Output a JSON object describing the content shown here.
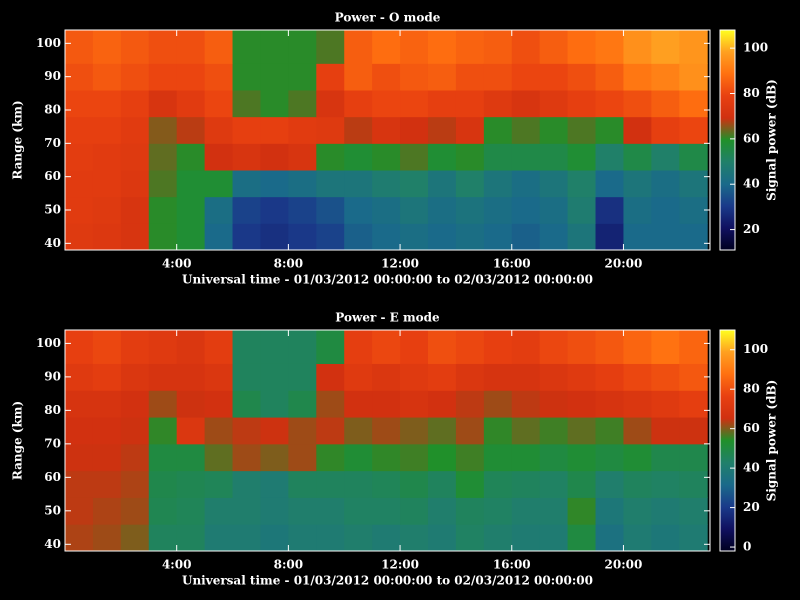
{
  "chart_data": [
    {
      "type": "heatmap",
      "title": "Power - O mode",
      "xlabel": "Universal time - 01/03/2012 00:00:00 to 02/03/2012 00:00:00",
      "ylabel": "Range (km)",
      "colorbar_label": "Signal power (dB)",
      "x_bins": [
        0,
        1,
        2,
        3,
        4,
        5,
        6,
        7,
        8,
        9,
        10,
        11,
        12,
        13,
        14,
        15,
        16,
        17,
        18,
        19,
        20,
        21,
        22,
        23
      ],
      "y_bins": [
        38,
        46,
        54,
        62,
        70,
        78,
        86,
        94,
        104
      ],
      "values": [
        [
          75,
          74,
          72,
          60,
          58,
          40,
          30,
          28,
          30,
          32,
          38,
          40,
          42,
          40,
          42,
          40,
          38,
          40,
          45,
          25,
          40,
          40,
          40
        ],
        [
          76,
          75,
          72,
          60,
          58,
          42,
          32,
          30,
          32,
          35,
          40,
          42,
          45,
          42,
          44,
          42,
          40,
          42,
          48,
          28,
          42,
          40,
          42
        ],
        [
          76,
          76,
          74,
          62,
          58,
          58,
          42,
          40,
          42,
          45,
          45,
          48,
          50,
          45,
          50,
          45,
          42,
          45,
          50,
          40,
          45,
          42,
          45
        ],
        [
          77,
          76,
          75,
          63,
          60,
          70,
          72,
          70,
          72,
          60,
          58,
          60,
          62,
          58,
          60,
          55,
          55,
          55,
          58,
          50,
          55,
          50,
          55
        ],
        [
          78,
          78,
          76,
          65,
          68,
          75,
          78,
          78,
          76,
          75,
          68,
          72,
          70,
          68,
          72,
          60,
          62,
          60,
          62,
          60,
          70,
          78,
          80
        ],
        [
          80,
          80,
          78,
          72,
          76,
          80,
          62,
          60,
          62,
          72,
          78,
          80,
          80,
          78,
          78,
          75,
          72,
          75,
          78,
          80,
          82,
          85,
          88
        ],
        [
          82,
          84,
          82,
          80,
          80,
          82,
          60,
          60,
          60,
          78,
          85,
          82,
          84,
          85,
          82,
          82,
          80,
          80,
          82,
          85,
          90,
          92,
          95
        ],
        [
          84,
          86,
          84,
          82,
          82,
          85,
          60,
          60,
          60,
          62,
          85,
          88,
          86,
          88,
          86,
          85,
          82,
          85,
          88,
          90,
          95,
          98,
          96
        ]
      ],
      "xlim": [
        0,
        23.1
      ],
      "xticks": [
        {
          "value": 4,
          "label": "4:00"
        },
        {
          "value": 8,
          "label": "8:00"
        },
        {
          "value": 12,
          "label": "12:00"
        },
        {
          "value": 16,
          "label": "16:00"
        },
        {
          "value": 20,
          "label": "20:00"
        }
      ],
      "ylim": [
        38,
        104
      ],
      "yticks": [
        40,
        50,
        60,
        70,
        80,
        90,
        100
      ],
      "zlim": [
        11,
        108
      ],
      "zticks": [
        20,
        40,
        60,
        80,
        100
      ],
      "colormap": [
        "#000020",
        "#101060",
        "#1a3a8a",
        "#1a6a8a",
        "#20806a",
        "#20902a",
        "#d03010",
        "#e84010",
        "#ff7010",
        "#ffa020",
        "#ffff20"
      ]
    },
    {
      "type": "heatmap",
      "title": "Power - E mode",
      "xlabel": "Universal time - 01/03/2012 00:00:00 to 02/03/2012 00:00:00",
      "ylabel": "Range (km)",
      "colorbar_label": "Signal power (dB)",
      "x_bins": [
        0,
        1,
        2,
        3,
        4,
        5,
        6,
        7,
        8,
        9,
        10,
        11,
        12,
        13,
        14,
        15,
        16,
        17,
        18,
        19,
        20,
        21,
        22,
        23
      ],
      "y_bins": [
        38,
        46,
        54,
        62,
        70,
        78,
        86,
        94,
        104
      ],
      "values": [
        [
          63,
          62,
          60,
          45,
          45,
          40,
          40,
          38,
          40,
          40,
          42,
          40,
          42,
          40,
          44,
          42,
          40,
          40,
          50,
          35,
          40,
          38,
          40
        ],
        [
          64,
          63,
          62,
          47,
          46,
          42,
          42,
          40,
          42,
          42,
          44,
          44,
          45,
          42,
          45,
          44,
          42,
          42,
          55,
          38,
          42,
          40,
          42
        ],
        [
          64,
          64,
          63,
          48,
          47,
          46,
          42,
          40,
          45,
          45,
          45,
          46,
          48,
          45,
          52,
          46,
          45,
          44,
          48,
          42,
          45,
          44,
          45
        ],
        [
          65,
          65,
          64,
          50,
          50,
          58,
          62,
          60,
          62,
          55,
          52,
          55,
          56,
          54,
          56,
          52,
          52,
          50,
          52,
          50,
          52,
          48,
          48
        ],
        [
          66,
          66,
          65,
          55,
          70,
          62,
          64,
          65,
          62,
          64,
          60,
          62,
          60,
          58,
          62,
          55,
          58,
          56,
          58,
          56,
          62,
          65,
          65
        ],
        [
          68,
          68,
          66,
          62,
          65,
          66,
          48,
          45,
          48,
          62,
          66,
          66,
          68,
          66,
          64,
          62,
          64,
          65,
          66,
          68,
          70,
          72,
          75
        ],
        [
          72,
          74,
          70,
          68,
          68,
          70,
          45,
          45,
          45,
          66,
          72,
          70,
          72,
          74,
          70,
          68,
          68,
          70,
          72,
          75,
          78,
          80,
          82
        ],
        [
          76,
          78,
          74,
          72,
          70,
          74,
          45,
          45,
          45,
          50,
          75,
          78,
          76,
          80,
          78,
          76,
          74,
          78,
          80,
          82,
          85,
          88,
          85
        ]
      ],
      "xlim": [
        0,
        23.1
      ],
      "xticks": [
        {
          "value": 4,
          "label": "4:00"
        },
        {
          "value": 8,
          "label": "8:00"
        },
        {
          "value": 12,
          "label": "12:00"
        },
        {
          "value": 16,
          "label": "16:00"
        },
        {
          "value": 20,
          "label": "20:00"
        }
      ],
      "ylim": [
        38,
        104
      ],
      "yticks": [
        40,
        50,
        60,
        70,
        80,
        90,
        100
      ],
      "zlim": [
        -2,
        110
      ],
      "zticks": [
        0,
        20,
        40,
        60,
        80,
        100
      ],
      "colormap": [
        "#000020",
        "#101060",
        "#1a3a8a",
        "#1a6a8a",
        "#20806a",
        "#20902a",
        "#d03010",
        "#e84010",
        "#ff7010",
        "#ffa020",
        "#ffff20"
      ]
    }
  ]
}
